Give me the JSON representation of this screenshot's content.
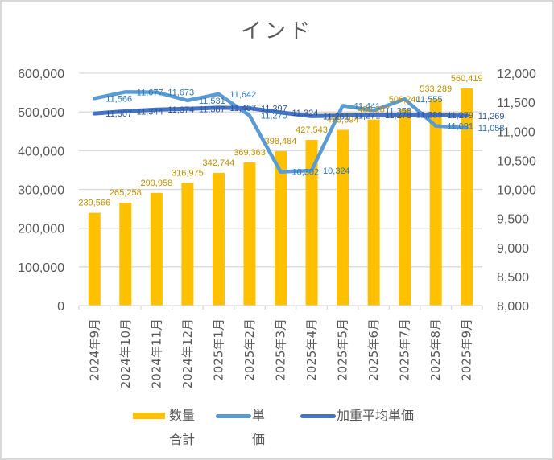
{
  "chart_data": {
    "type": "bar",
    "title": "インド",
    "xlabel": "",
    "ylabel": "",
    "categories": [
      "2024年9月",
      "2024年10月",
      "2024年11月",
      "2024年12月",
      "2025年1月",
      "2025年2月",
      "2025年3月",
      "2025年4月",
      "2025年5月",
      "2025年6月",
      "2025年7月",
      "2025年8月",
      "2025年9月"
    ],
    "series": [
      {
        "name": "数量合計",
        "type": "bar",
        "axis": "left",
        "color": "#FFC000",
        "label_color": "#BF9000",
        "values": [
          239566,
          265258,
          290958,
          316975,
          342744,
          369363,
          398484,
          427543,
          453694,
          480287,
          506240,
          533289,
          560419
        ],
        "labels": [
          "239,566",
          "265,258",
          "290,958",
          "316,975",
          "342,744",
          "369,363",
          "398,484",
          "427,543",
          "453,694",
          "480,287",
          "506,240",
          "533,289",
          "560,419"
        ]
      },
      {
        "name": "単価",
        "type": "line",
        "axis": "right",
        "color": "#5B9BD5",
        "label_color": "#2E75B6",
        "values": [
          11566,
          11677,
          11673,
          11531,
          11642,
          11270,
          10302,
          10324,
          11441,
          11358,
          11555,
          11091,
          11058
        ],
        "labels": [
          "11,566",
          "11,677",
          "11,673",
          "11,531",
          "11,642",
          "11,270",
          "10,302",
          "10,324",
          "11,441",
          "11,358",
          "11,555",
          "11,091",
          "11,058"
        ]
      },
      {
        "name": "加重平均単価",
        "type": "line",
        "axis": "right",
        "color": "#4472C4",
        "label_color": "#2F5597",
        "values": [
          11307,
          11344,
          11374,
          11387,
          11407,
          11397,
          11324,
          11261,
          11271,
          11278,
          11289,
          11279,
          11269
        ],
        "labels": [
          "11,307",
          "11,344",
          "11,374",
          "11,387",
          "11,407",
          "11,397",
          "11,324",
          "11,261",
          "11,271",
          "11,278",
          "11,289",
          "11,279",
          "11,269"
        ]
      }
    ],
    "y_left": {
      "min": 0,
      "max": 600000,
      "ticks": [
        0,
        100000,
        200000,
        300000,
        400000,
        500000,
        600000
      ],
      "tick_labels": [
        "0",
        "100,000",
        "200,000",
        "300,000",
        "400,000",
        "500,000",
        "600,000"
      ]
    },
    "y_right": {
      "min": 8000,
      "max": 12000,
      "ticks": [
        8000,
        8500,
        9000,
        9500,
        10000,
        10500,
        11000,
        11500,
        12000
      ],
      "tick_labels": [
        "8,000",
        "8,500",
        "9,000",
        "9,500",
        "10,000",
        "10,500",
        "11,000",
        "11,500",
        "12,000"
      ]
    },
    "grid": true,
    "legend": "bottom",
    "colors": {
      "gridline": "#D9D9D9",
      "axis_text": "#595959",
      "frame": "#D9D9D9"
    }
  }
}
